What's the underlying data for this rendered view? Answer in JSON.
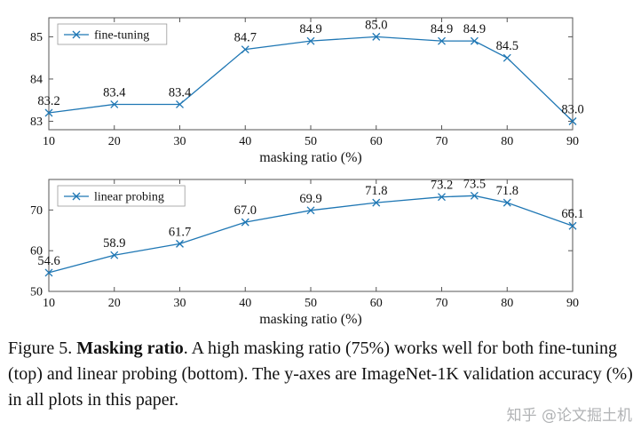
{
  "figure": {
    "caption": {
      "label": "Figure 5.",
      "title": "Masking ratio",
      "body": ". A high masking ratio (75%) works well for both fine-tuning (top) and linear probing (bottom). The y-axes are ImageNet-1K validation accuracy (%) in all plots in this paper."
    },
    "watermark": "知乎 @论文掘土机"
  },
  "chart_data": [
    {
      "type": "line",
      "legend": "fine-tuning",
      "legend_position": "top-left",
      "x": [
        10,
        20,
        30,
        40,
        50,
        60,
        70,
        75,
        80,
        90
      ],
      "values": [
        83.2,
        83.4,
        83.4,
        84.7,
        84.9,
        85.0,
        84.9,
        84.9,
        84.5,
        83.0
      ],
      "xlabel": "masking ratio (%)",
      "ylabel": "",
      "xticks": [
        10,
        20,
        30,
        40,
        50,
        60,
        70,
        80,
        90
      ],
      "yticks": [
        83,
        84,
        85
      ],
      "xlim": [
        10,
        90
      ],
      "ylim": [
        82.8,
        85.45
      ],
      "grid": false,
      "marker": "x",
      "line_color": "#1f77b4"
    },
    {
      "type": "line",
      "legend": "linear probing",
      "legend_position": "top-left",
      "x": [
        10,
        20,
        30,
        40,
        50,
        60,
        70,
        75,
        80,
        90
      ],
      "values": [
        54.6,
        58.9,
        61.7,
        67.0,
        69.9,
        71.8,
        73.2,
        73.5,
        71.8,
        66.1
      ],
      "xlabel": "masking ratio (%)",
      "ylabel": "",
      "xticks": [
        10,
        20,
        30,
        40,
        50,
        60,
        70,
        80,
        90
      ],
      "yticks": [
        50,
        60,
        70
      ],
      "xlim": [
        10,
        90
      ],
      "ylim": [
        50,
        77.5
      ],
      "grid": false,
      "marker": "x",
      "line_color": "#1f77b4"
    }
  ]
}
